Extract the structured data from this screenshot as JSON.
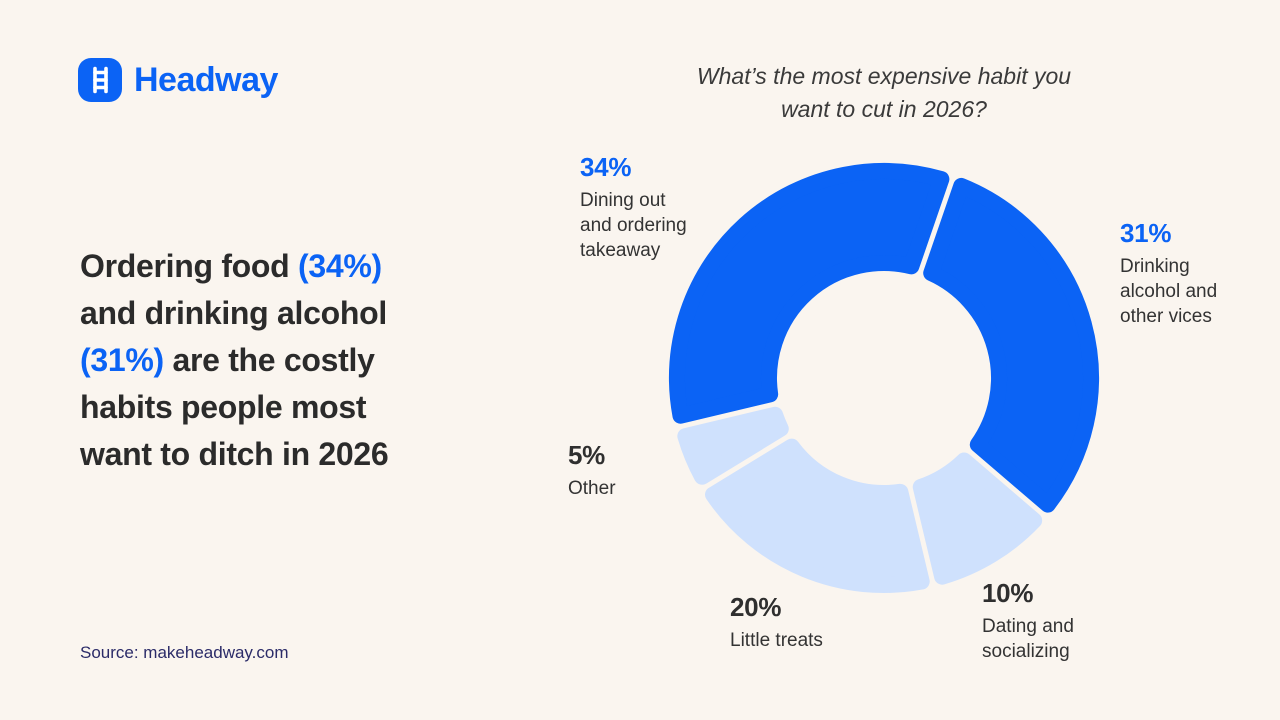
{
  "page": {
    "background": "#faf5ef"
  },
  "brand": {
    "logo_text": "Headway",
    "logo_icon": "ladder-icon",
    "brand_blue": "#0b63f5"
  },
  "headline": {
    "text": "Ordering food (34%) and drinking alcohol (31%) are the costly habits people most want to ditch in 2026",
    "lines": [
      [
        {
          "t": "Ordering food ",
          "c": "dark"
        },
        {
          "t": "(34%)",
          "c": "blue"
        }
      ],
      [
        {
          "t": "and drinking alcohol",
          "c": "dark"
        }
      ],
      [
        {
          "t": "(31%)",
          "c": "blue"
        },
        {
          "t": " are the costly",
          "c": "dark"
        }
      ],
      [
        {
          "t": "habits people most",
          "c": "dark"
        }
      ],
      [
        {
          "t": "want to ditch in 2026",
          "c": "dark"
        }
      ]
    ]
  },
  "source": {
    "label": "Source: makeheadway.com",
    "color": "#2b2b68"
  },
  "chart_data": {
    "type": "donut",
    "title": "What’s the most expensive habit you want to cut in 2026?",
    "title_lines": [
      "What’s the most expensive habit you",
      "want to cut in 2026?"
    ],
    "direction": "clockwise",
    "start_angle_deg": 19,
    "inner_radius_ratio": 0.5,
    "legend_position": "around-chart",
    "colors": {
      "accent": "#0b63f5",
      "muted": "#cfe1fd",
      "background": "#faf5ef"
    },
    "segments": [
      {
        "pct_label": "31%",
        "value": 31,
        "label": "Drinking alcohol and other vices",
        "label_lines": [
          "Drinking",
          "alcohol and",
          "other vices"
        ],
        "color": "accent",
        "pct_color": "#0b63f5"
      },
      {
        "pct_label": "10%",
        "value": 10,
        "label": "Dating and socializing",
        "label_lines": [
          "Dating and",
          "socializing"
        ],
        "color": "muted",
        "pct_color": "#2f2f2f"
      },
      {
        "pct_label": "20%",
        "value": 20,
        "label": "Little treats",
        "label_lines": [
          "Little treats"
        ],
        "color": "muted",
        "pct_color": "#2f2f2f"
      },
      {
        "pct_label": "5%",
        "value": 5,
        "label": "Other",
        "label_lines": [
          "Other"
        ],
        "color": "muted",
        "pct_color": "#2f2f2f"
      },
      {
        "pct_label": "34%",
        "value": 34,
        "label": "Dining out and ordering takeaway",
        "label_lines": [
          "Dining out",
          "and ordering",
          "takeaway"
        ],
        "color": "accent",
        "pct_color": "#0b63f5"
      }
    ]
  }
}
